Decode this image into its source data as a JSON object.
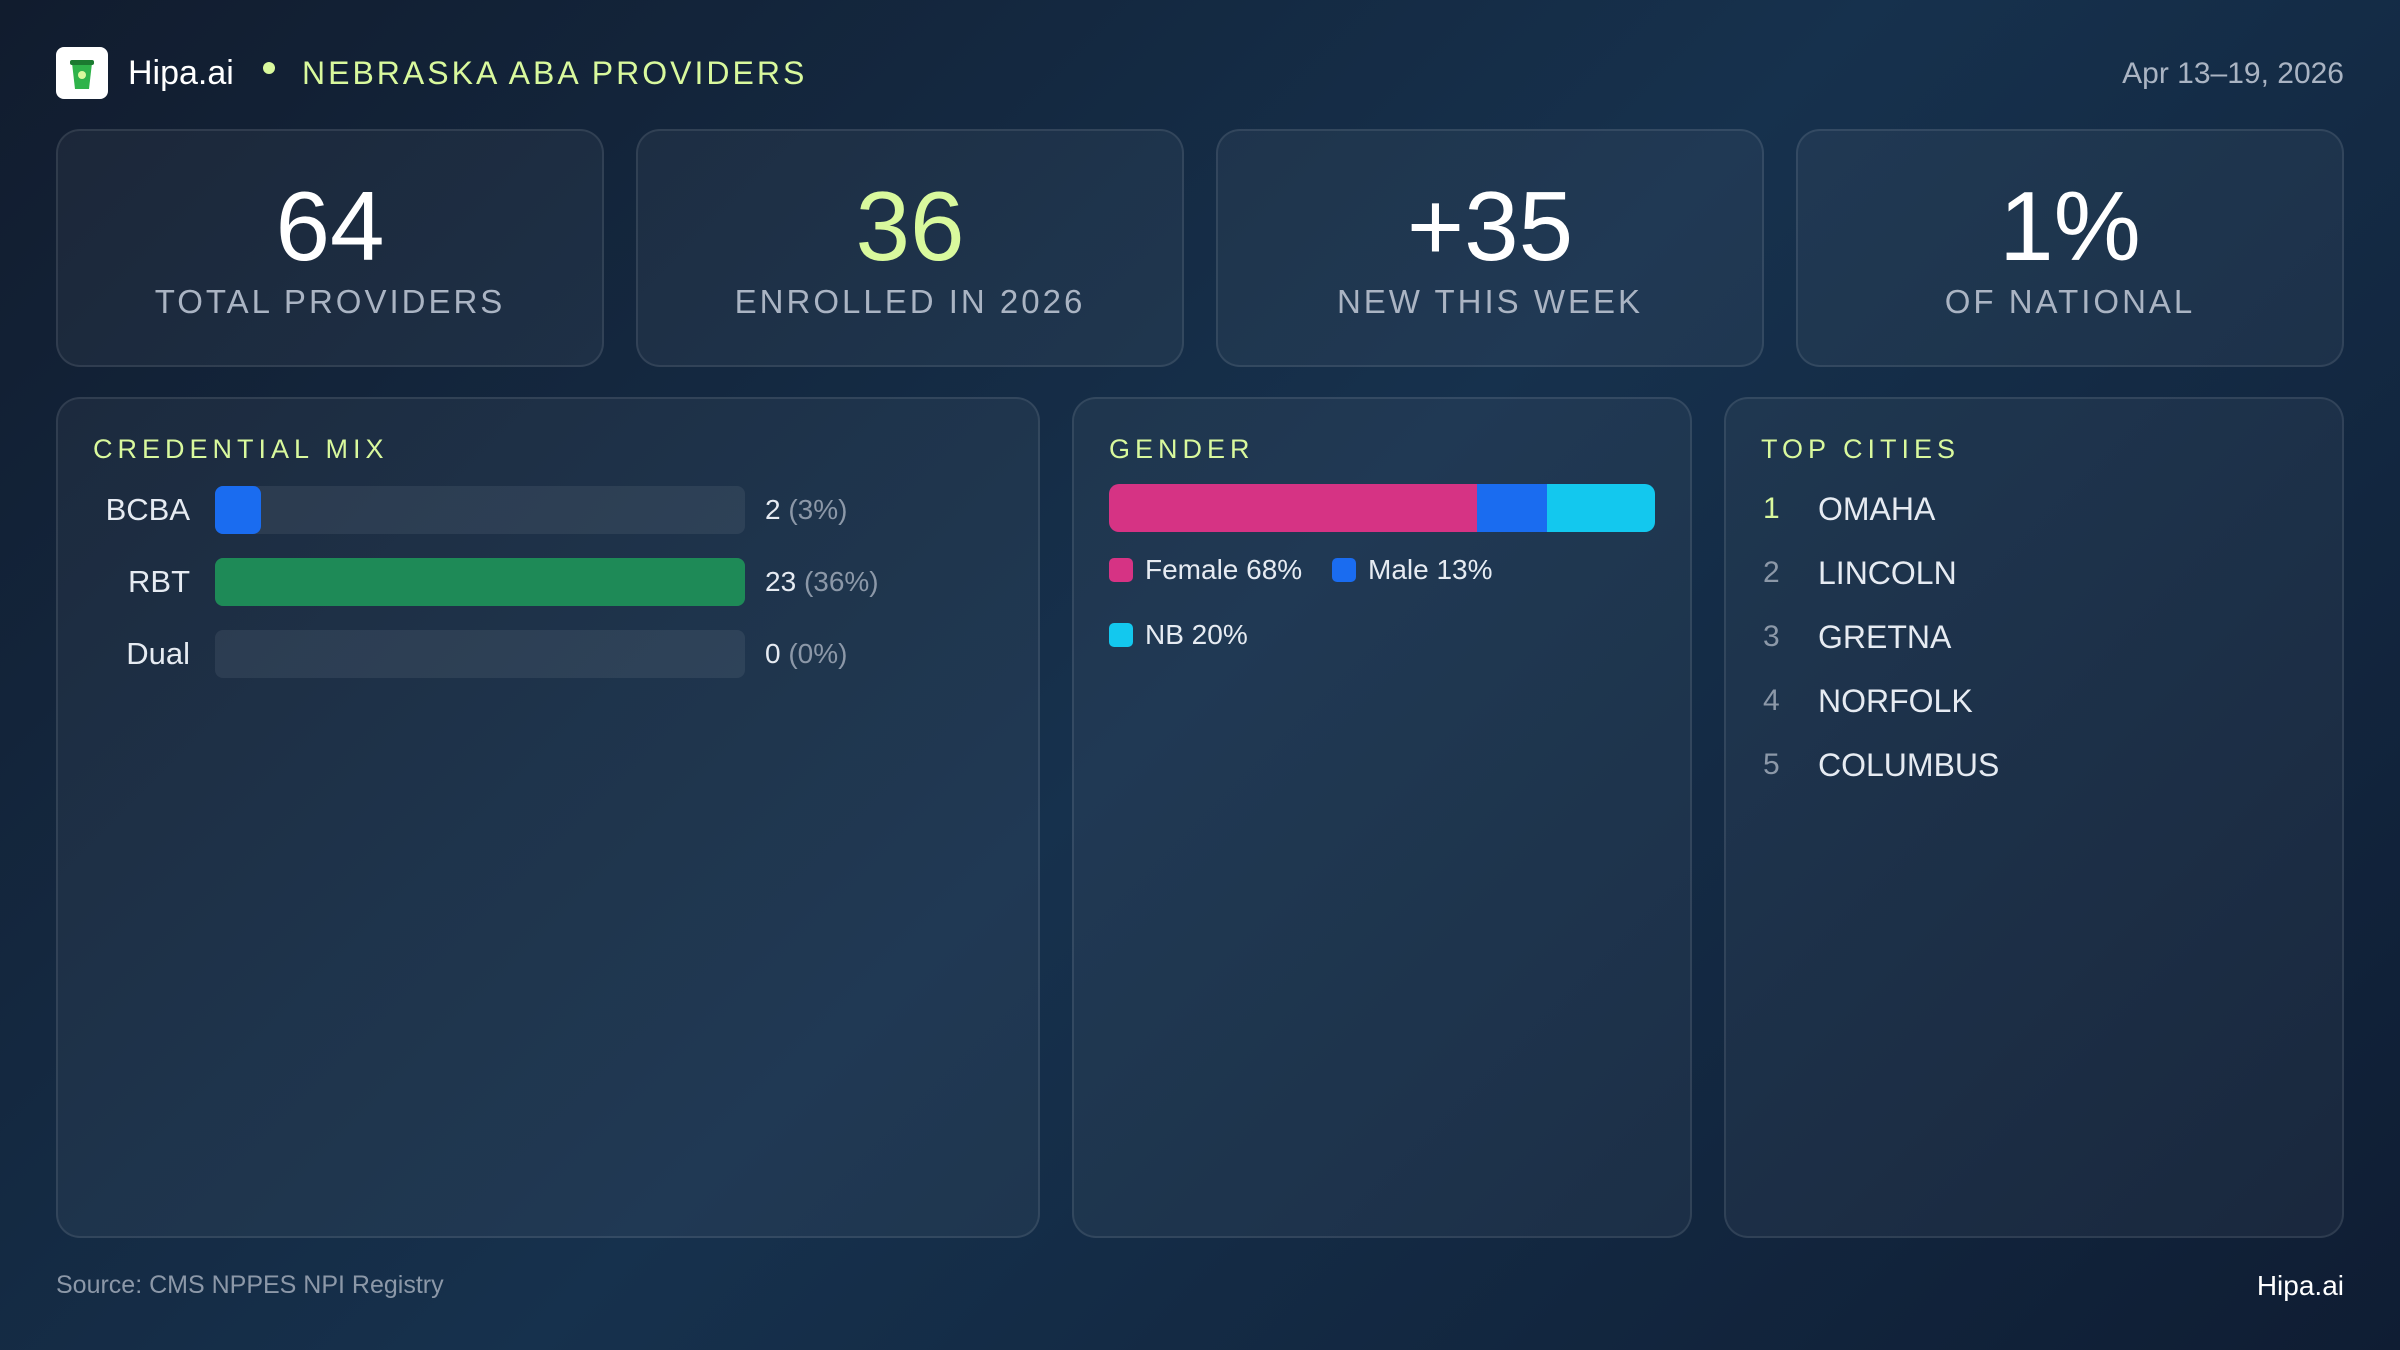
{
  "header": {
    "brand": "Hipa.ai",
    "title": "NEBRASKA ABA PROVIDERS",
    "date_range": "Apr 13–19, 2026"
  },
  "kpis": [
    {
      "value": "64",
      "label": "TOTAL PROVIDERS",
      "color": "#ffffff"
    },
    {
      "value": "36",
      "label": "ENROLLED IN 2026",
      "color": "#d9f99d"
    },
    {
      "value": "+35",
      "label": "NEW THIS WEEK",
      "color": "#ffffff"
    },
    {
      "value": "1%",
      "label": "OF NATIONAL",
      "color": "#ffffff"
    }
  ],
  "credential_mix": {
    "title": "CREDENTIAL MIX",
    "rows": [
      {
        "label": "BCBA",
        "count": 2,
        "share": "(3%)",
        "color": "#1a6cf0"
      },
      {
        "label": "RBT",
        "count": 23,
        "share": "(36%)",
        "color": "#1e8a57"
      },
      {
        "label": "Dual",
        "count": 0,
        "share": "(0%)",
        "color": "#8b5cf6"
      }
    ]
  },
  "gender": {
    "title": "GENDER",
    "segments": [
      {
        "label": "Female 68%",
        "value": 68,
        "color": "#d63384"
      },
      {
        "label": "Male 13%",
        "value": 13,
        "color": "#1a6cf0"
      },
      {
        "label": "NB 20%",
        "value": 20,
        "color": "#13c8ee"
      }
    ]
  },
  "top_cities": {
    "title": "TOP CITIES",
    "items": [
      {
        "rank": "1",
        "name": "OMAHA"
      },
      {
        "rank": "2",
        "name": "LINCOLN"
      },
      {
        "rank": "3",
        "name": "GRETNA"
      },
      {
        "rank": "4",
        "name": "NORFOLK"
      },
      {
        "rank": "5",
        "name": "COLUMBUS"
      }
    ]
  },
  "footer": {
    "source": "Source: CMS NPPES NPI Registry",
    "brand": "Hipa.ai"
  }
}
